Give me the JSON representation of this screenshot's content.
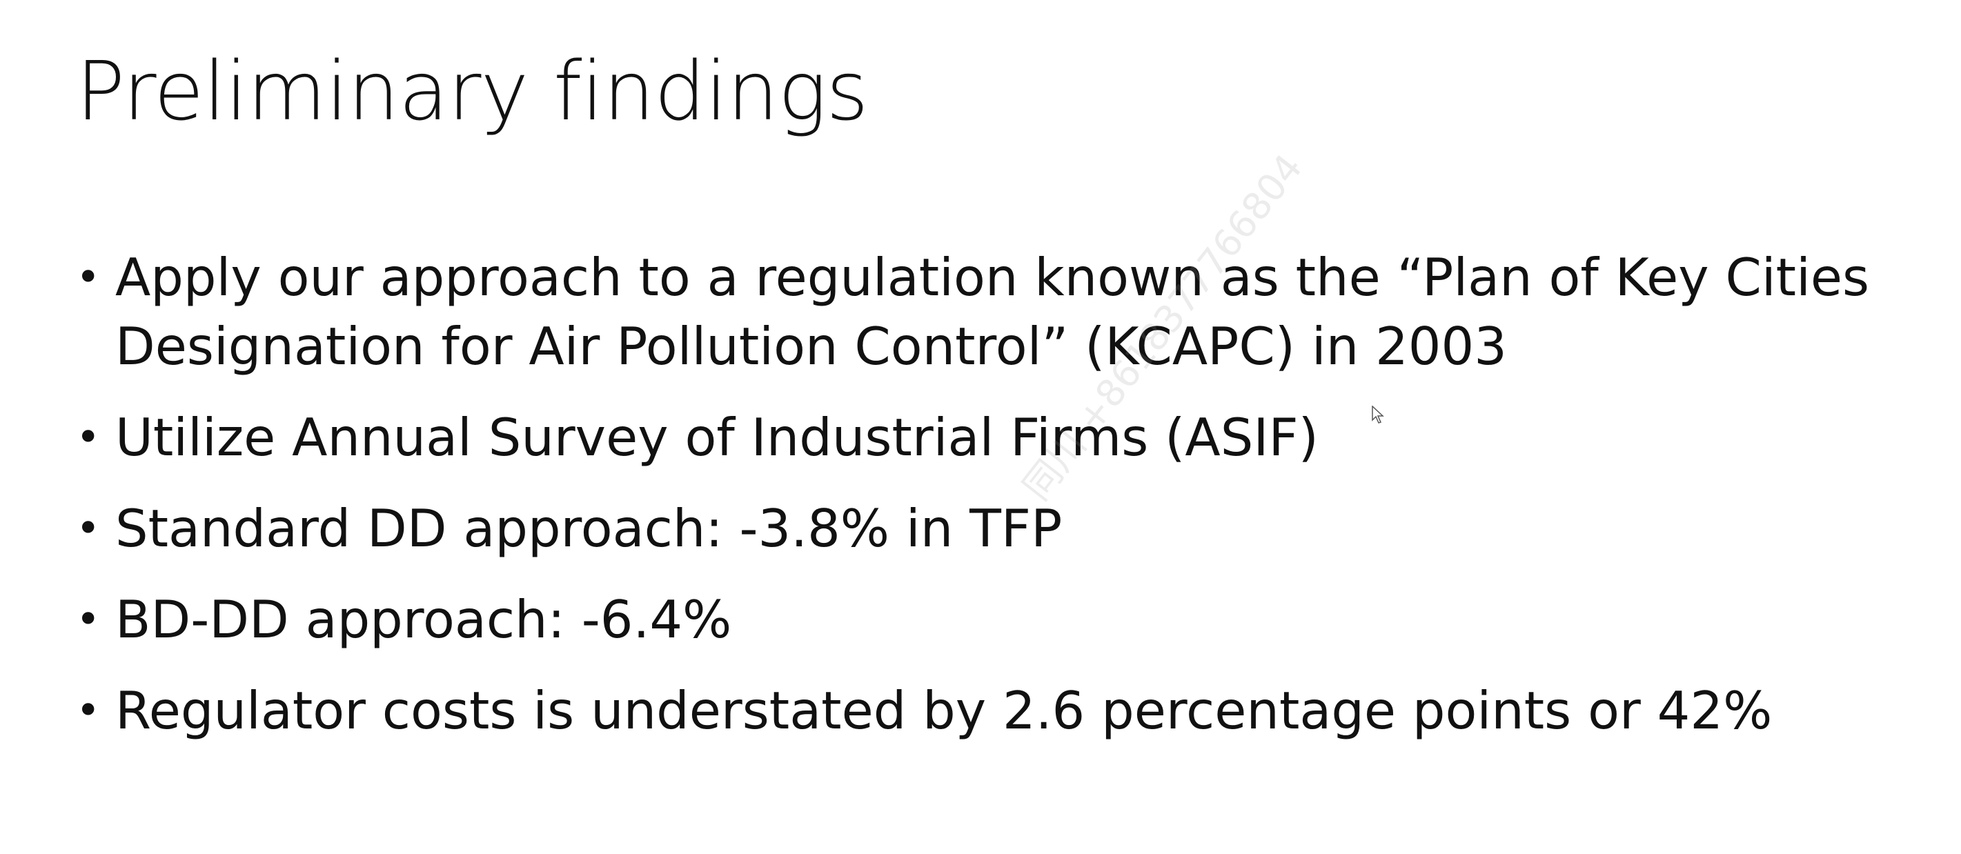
{
  "slide": {
    "title": "Preliminary findings",
    "bullets": [
      "Apply our approach to a regulation known as the “Plan of Key Cities Designation for Air Pollution Control” (KCAPC) in 2003",
      "Utilize Annual Survey of Industrial Firms (ASIF)",
      "Standard DD approach: -3.8% in TFP",
      "BD-DD approach: -6.4%",
      "Regulator costs is understated by 2.6 percentage points or 42%"
    ],
    "bullet_symbol": "•",
    "watermark": "同川 +8618377766804"
  }
}
